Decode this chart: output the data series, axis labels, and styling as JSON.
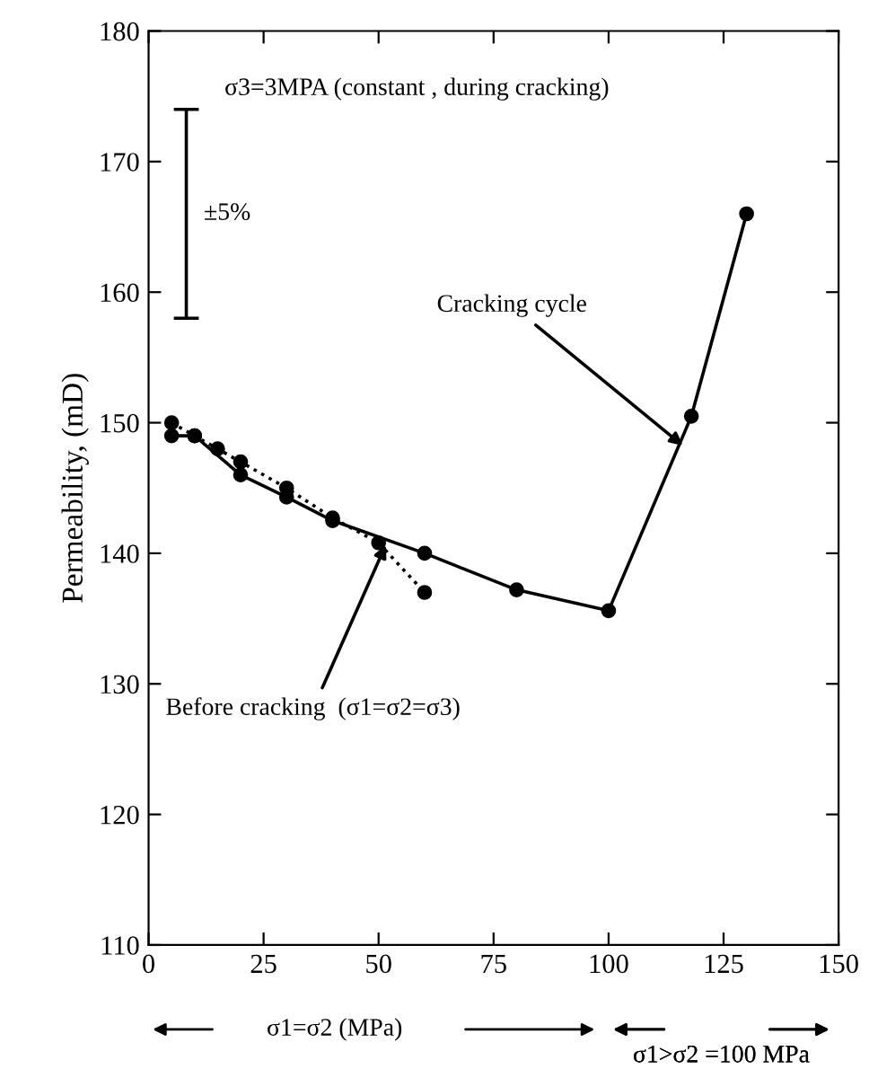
{
  "chart_data": {
    "type": "line",
    "ylabel": "Permeability, (mD)",
    "xlim": [
      0,
      150
    ],
    "ylim": [
      110,
      180
    ],
    "xticks": [
      0,
      25,
      50,
      75,
      100,
      125,
      150
    ],
    "yticks": [
      110,
      120,
      130,
      140,
      150,
      160,
      170,
      180
    ],
    "grid": false,
    "legend": false,
    "marker": "circle",
    "series": [
      {
        "color": "#000000",
        "line_style": "solid",
        "x": [
          5,
          10,
          20,
          30,
          40,
          60,
          80,
          100,
          118,
          130
        ],
        "values": [
          149,
          149,
          146,
          144.3,
          142.5,
          140,
          137.2,
          135.6,
          150.5,
          166
        ]
      },
      {
        "color": "#000000",
        "line_style": "dotted",
        "x": [
          5,
          10,
          15,
          20,
          30,
          40,
          50,
          60
        ],
        "values": [
          150,
          149,
          148,
          147,
          145,
          142.7,
          140.8,
          137
        ]
      },
      {
        "color": "#000000",
        "line_style": "solid",
        "marker": "none",
        "x": [
          8.2,
          8.2
        ],
        "values": [
          158,
          174
        ]
      }
    ],
    "annotations": [
      "σ3=3MPA (constant , during cracking)",
      "±5%",
      {
        "text": "Cracking cycle",
        "x": 117,
        "y": 148
      },
      {
        "text": "Before cracking  (σ1=σ2=σ3)",
        "x": 52,
        "y": 141
      },
      "σ1=σ2 (MPa)",
      "σ1>σ2 =100 MPa"
    ]
  }
}
